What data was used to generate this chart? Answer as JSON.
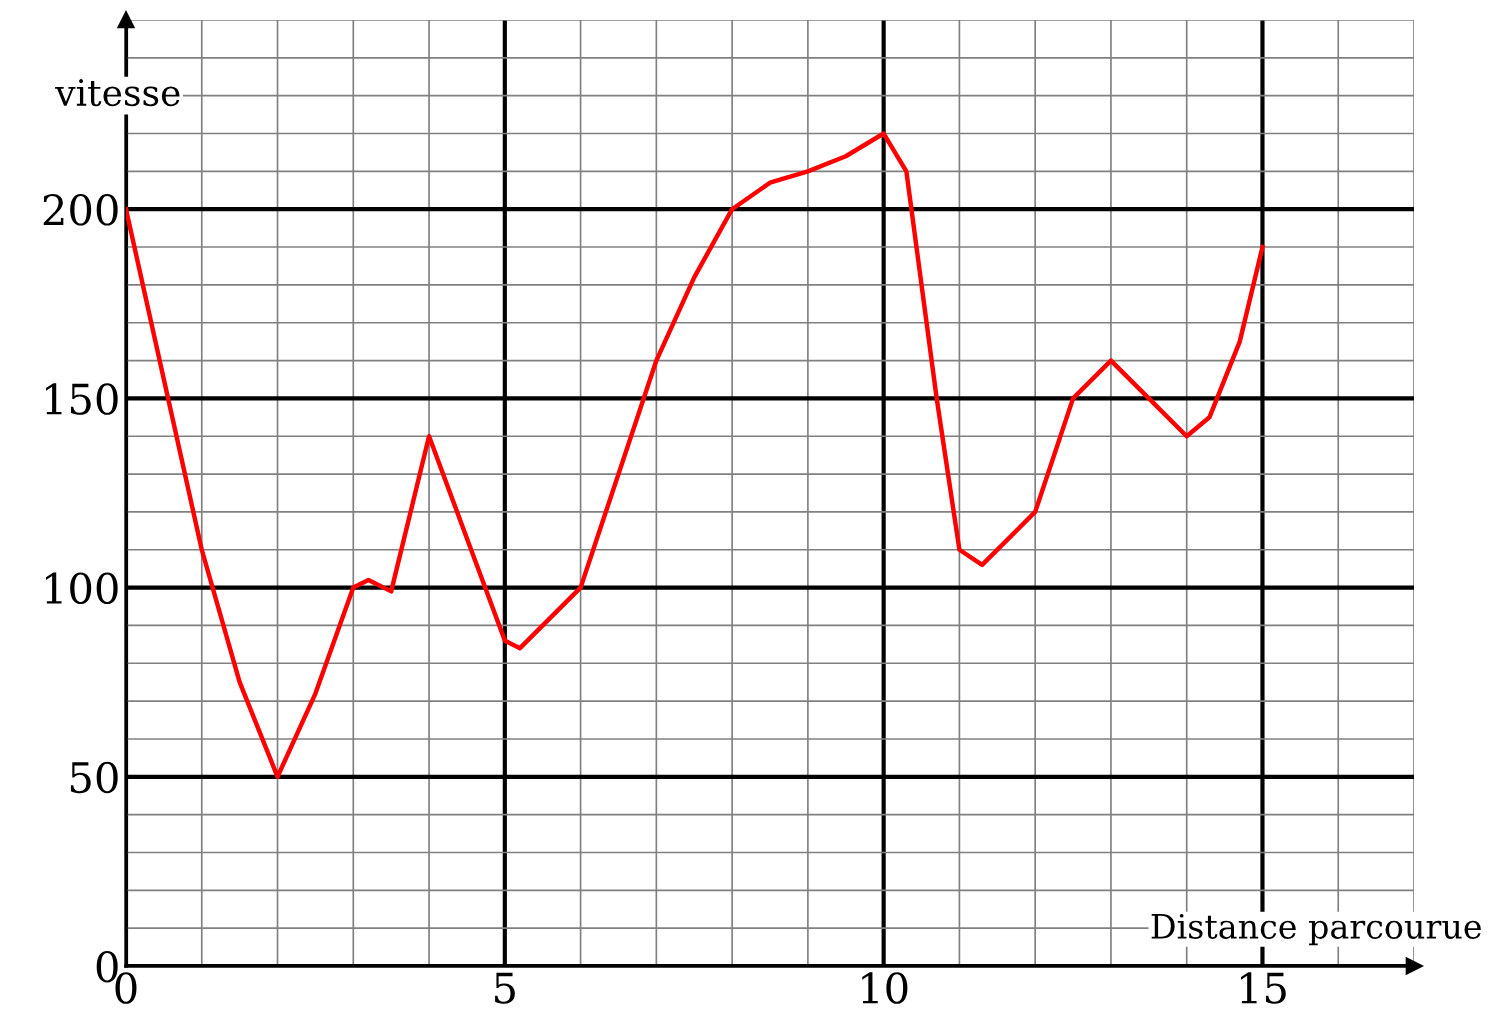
{
  "chart_data": {
    "type": "line",
    "xlabel": "Distance parcourue",
    "ylabel": "vitesse",
    "x": [
      0,
      0.5,
      1,
      1.5,
      2,
      2.5,
      3,
      3.2,
      3.5,
      4,
      4.5,
      5,
      5.2,
      6,
      6.5,
      7,
      7.5,
      8,
      8.5,
      9,
      9.5,
      10,
      10.3,
      10.5,
      10.7,
      11,
      11.3,
      12,
      12.5,
      13,
      13.5,
      14,
      14.3,
      14.7,
      15
    ],
    "series": [
      {
        "color": "#ff0000",
        "values": [
          200,
          155,
          110,
          75,
          50,
          72,
          100,
          102,
          99,
          140,
          113,
          86,
          84,
          100,
          130,
          160,
          182,
          200,
          207,
          210,
          214,
          220,
          210,
          180,
          150,
          110,
          106,
          120,
          150,
          160,
          150,
          140,
          145,
          165,
          190
        ]
      }
    ],
    "xlim": [
      0,
      17
    ],
    "ylim": [
      0,
      250
    ],
    "xticks": [
      0,
      5,
      10,
      15
    ],
    "yticks": [
      0,
      50,
      100,
      150,
      200
    ],
    "grid": true,
    "marker": "none",
    "line_style": "solid",
    "legend": false
  }
}
